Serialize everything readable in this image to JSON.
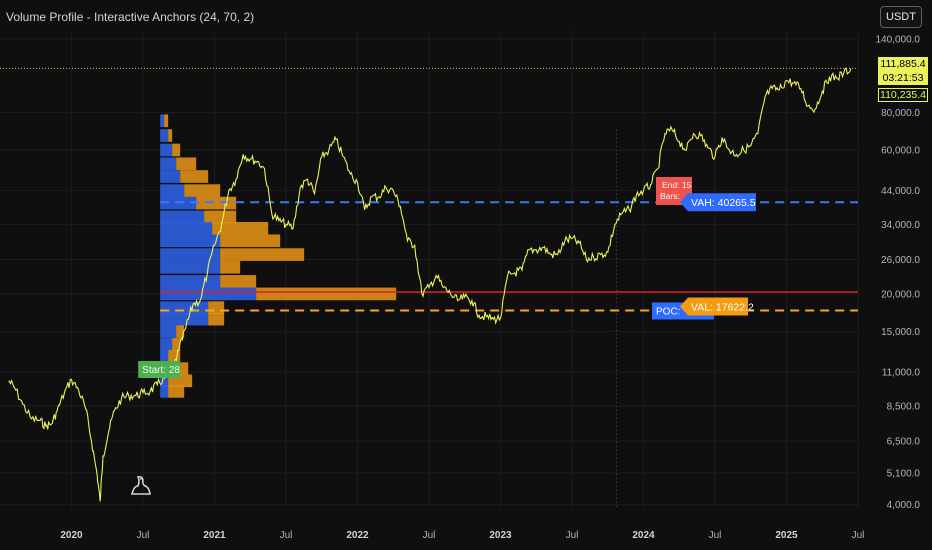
{
  "indicator": {
    "title": "Volume Profile - Interactive Anchors (24, 70, 2)"
  },
  "currency_label": "USDT",
  "price_tags": {
    "last": "111,885.4",
    "countdown": "03:21:53",
    "secondary": "110,235.4"
  },
  "colors": {
    "background": "#0f0f0f",
    "price_line": "#eaf35a",
    "volume_blue": "#2d5fe0",
    "volume_orange": "#e08f16",
    "vah_line": "#3b78ff",
    "val_line": "#f5a623",
    "poc_line": "#e0202a",
    "axis_text": "#b2b5be"
  },
  "annotations": {
    "start": "Start: 28",
    "end": "End: 15",
    "bars": "Bars:",
    "vah": "VAH: 40265.5",
    "val": "VAL: 17622.2",
    "poc": "POC:"
  },
  "chart_data": {
    "type": "line",
    "title": "Volume Profile - Interactive Anchors (24, 70, 2)",
    "y_scale": "log",
    "ylim": [
      3900,
      150000
    ],
    "y_ticks": [
      {
        "value": 140000,
        "label": "140,000.0"
      },
      {
        "value": 80000,
        "label": "80,000.0"
      },
      {
        "value": 60000,
        "label": "60,000.0"
      },
      {
        "value": 44000,
        "label": "44,000.0"
      },
      {
        "value": 34000,
        "label": "34,000.0"
      },
      {
        "value": 26000,
        "label": "26,000.0"
      },
      {
        "value": 20000,
        "label": "20,000.0"
      },
      {
        "value": 15000,
        "label": "15,000.0"
      },
      {
        "value": 11000,
        "label": "11,000.0"
      },
      {
        "value": 8500,
        "label": "8,500.0"
      },
      {
        "value": 6500,
        "label": "6,500.0"
      },
      {
        "value": 5100,
        "label": "5,100.0"
      },
      {
        "value": 4000,
        "label": "4,000.0"
      }
    ],
    "xlim": [
      2019.5,
      2025.5
    ],
    "x_ticks": [
      {
        "value": 2020.0,
        "label": "2020"
      },
      {
        "value": 2020.5,
        "label": "Jul"
      },
      {
        "value": 2021.0,
        "label": "2021"
      },
      {
        "value": 2021.5,
        "label": "Jul"
      },
      {
        "value": 2022.0,
        "label": "2022"
      },
      {
        "value": 2022.5,
        "label": "Jul"
      },
      {
        "value": 2023.0,
        "label": "2023"
      },
      {
        "value": 2023.5,
        "label": "Jul"
      },
      {
        "value": 2024.0,
        "label": "2024"
      },
      {
        "value": 2024.5,
        "label": "Jul"
      },
      {
        "value": 2025.0,
        "label": "2025"
      },
      {
        "value": 2025.5,
        "label": "Jul"
      }
    ],
    "series": [
      {
        "x": [
          2019.56,
          2019.6,
          2019.66,
          2019.72,
          2019.78,
          2019.82,
          2019.86,
          2019.9,
          2019.95,
          2020.0,
          2020.05,
          2020.1,
          2020.14,
          2020.18,
          2020.2,
          2020.22,
          2020.26,
          2020.3,
          2020.35,
          2020.4,
          2020.45,
          2020.5,
          2020.55,
          2020.6,
          2020.65,
          2020.7,
          2020.75,
          2020.8,
          2020.85,
          2020.9,
          2020.95,
          2021.0,
          2021.05,
          2021.1,
          2021.15,
          2021.2,
          2021.25,
          2021.3,
          2021.35,
          2021.4,
          2021.45,
          2021.5,
          2021.55,
          2021.6,
          2021.65,
          2021.7,
          2021.75,
          2021.8,
          2021.85,
          2021.9,
          2021.95,
          2022.0,
          2022.05,
          2022.1,
          2022.15,
          2022.2,
          2022.25,
          2022.3,
          2022.35,
          2022.4,
          2022.45,
          2022.5,
          2022.55,
          2022.6,
          2022.65,
          2022.7,
          2022.75,
          2022.8,
          2022.85,
          2022.9,
          2022.95,
          2023.0,
          2023.05,
          2023.1,
          2023.15,
          2023.2,
          2023.25,
          2023.3,
          2023.35,
          2023.4,
          2023.45,
          2023.5,
          2023.55,
          2023.6,
          2023.65,
          2023.7,
          2023.75,
          2023.8,
          2023.85,
          2023.9,
          2023.95,
          2024.0,
          2024.05,
          2024.1,
          2024.15,
          2024.2,
          2024.25,
          2024.3,
          2024.35,
          2024.4,
          2024.45,
          2024.5,
          2024.55,
          2024.6,
          2024.65,
          2024.7,
          2024.75,
          2024.8,
          2024.85,
          2024.9,
          2024.95,
          2025.0,
          2025.05,
          2025.1,
          2025.15,
          2025.2,
          2025.25,
          2025.3,
          2025.35,
          2025.4,
          2025.45
        ],
        "y": [
          10300,
          9800,
          8600,
          7700,
          7600,
          7300,
          7400,
          8200,
          9400,
          10400,
          9600,
          8300,
          6500,
          5000,
          4100,
          5800,
          7000,
          8200,
          9000,
          9200,
          9200,
          9400,
          9500,
          10000,
          10500,
          11000,
          13000,
          15500,
          18500,
          19000,
          23500,
          29000,
          34000,
          44000,
          48000,
          58000,
          56000,
          55000,
          52000,
          37000,
          35000,
          34000,
          33000,
          45000,
          48000,
          43000,
          57000,
          60000,
          65000,
          57000,
          50000,
          47000,
          38000,
          42000,
          42000,
          45000,
          44000,
          39000,
          30000,
          29000,
          20000,
          21000,
          23000,
          21000,
          20000,
          19000,
          19500,
          19000,
          17000,
          16800,
          16500,
          16600,
          23000,
          23500,
          24000,
          28000,
          28000,
          28500,
          27000,
          27000,
          30000,
          30500,
          29500,
          26000,
          26500,
          27000,
          27500,
          34000,
          37000,
          38000,
          42500,
          44000,
          46000,
          52000,
          68000,
          70000,
          64000,
          60000,
          68000,
          67000,
          61000,
          57000,
          66000,
          60000,
          58000,
          60000,
          62000,
          68000,
          90000,
          96000,
          95000,
          102000,
          100000,
          96000,
          84000,
          82000,
          94000,
          105000,
          104000,
          108000,
          111885
        ]
      }
    ],
    "volume_profile": {
      "rows": [
        {
          "price": 75000,
          "up": 1,
          "down": 1
        },
        {
          "price": 67000,
          "up": 2,
          "down": 1
        },
        {
          "price": 60000,
          "up": 3,
          "down": 2
        },
        {
          "price": 54000,
          "up": 4,
          "down": 5
        },
        {
          "price": 49000,
          "up": 5,
          "down": 7
        },
        {
          "price": 44000,
          "up": 6,
          "down": 9
        },
        {
          "price": 40000,
          "up": 9,
          "down": 10
        },
        {
          "price": 36000,
          "up": 11,
          "down": 8
        },
        {
          "price": 33000,
          "up": 13,
          "down": 14
        },
        {
          "price": 30000,
          "up": 15,
          "down": 15
        },
        {
          "price": 27000,
          "up": 15,
          "down": 21
        },
        {
          "price": 24500,
          "up": 15,
          "down": 5
        },
        {
          "price": 22000,
          "up": 15,
          "down": 9
        },
        {
          "price": 20000,
          "up": 24,
          "down": 35
        },
        {
          "price": 18000,
          "up": 12,
          "down": 4
        },
        {
          "price": 16500,
          "up": 12,
          "down": 4
        },
        {
          "price": 15000,
          "up": 4,
          "down": 2
        },
        {
          "price": 13600,
          "up": 3,
          "down": 2
        },
        {
          "price": 12400,
          "up": 2,
          "down": 3
        },
        {
          "price": 11300,
          "up": 2,
          "down": 5
        },
        {
          "price": 10300,
          "up": 2,
          "down": 6
        },
        {
          "price": 9500,
          "up": 2,
          "down": 4
        }
      ],
      "start_x": 2020.62,
      "end_x": 2023.81
    },
    "levels": {
      "vah": 40265.5,
      "val": 17622.2,
      "poc": 20300,
      "last": 111885.4,
      "secondary": 110235.4
    }
  }
}
